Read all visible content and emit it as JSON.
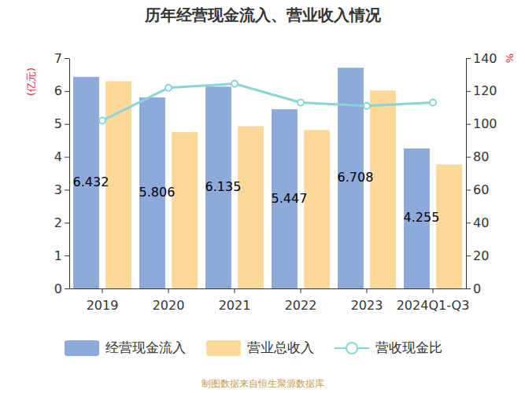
{
  "chart_data": {
    "type": "bar",
    "title": "历年经营现金流入、营业收入情况",
    "ylabel": "(亿元)",
    "y2label": "%",
    "source": "制图数据来自恒生聚源数据库",
    "categories": [
      "2019",
      "2020",
      "2021",
      "2022",
      "2023",
      "2024Q1-Q3"
    ],
    "series": [
      {
        "name": "经营现金流入",
        "type": "bar",
        "color": "#8eaadb",
        "data_labels": true,
        "values": [
          6.432,
          5.806,
          6.135,
          5.447,
          6.708,
          4.255
        ]
      },
      {
        "name": "营业总收入",
        "type": "bar",
        "color": "#fdd89b",
        "values": [
          6.3,
          4.75,
          4.93,
          4.82,
          6.02,
          3.77
        ]
      },
      {
        "name": "营收现金比",
        "type": "line",
        "axis": "y2",
        "color": "#89d4d6",
        "marker": "circle",
        "values": [
          102,
          122,
          124.5,
          113,
          111,
          113
        ]
      }
    ],
    "ylim": [
      0,
      7
    ],
    "yticks": [
      0,
      1,
      2,
      3,
      4,
      5,
      6,
      7
    ],
    "y2lim": [
      0,
      140
    ],
    "y2ticks": [
      0,
      20,
      40,
      60,
      80,
      100,
      120,
      140
    ],
    "legend": "bottom"
  }
}
